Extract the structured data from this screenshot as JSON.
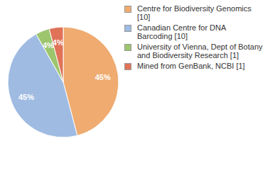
{
  "chart_data": {
    "type": "pie",
    "categories": [
      "Centre for Biodiversity Genomics [10]",
      "Canadian Centre for DNA Barcoding [10]",
      "University of Vienna, Dept of Botany and Biodiversity Research [1]",
      "Mined from GenBank, NCBI [1]"
    ],
    "values": [
      45,
      45,
      4,
      4
    ],
    "value_labels": [
      "45%",
      "45%",
      "4%",
      "4%"
    ],
    "colors": [
      "#efab70",
      "#9fbbe2",
      "#9dc56e",
      "#e07257"
    ],
    "data_labels": true,
    "legend": "right"
  }
}
